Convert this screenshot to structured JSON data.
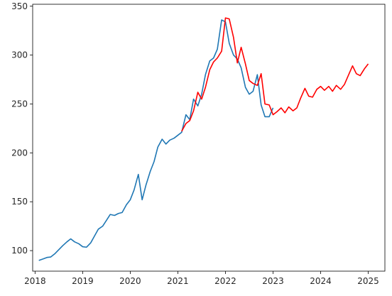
{
  "chart_data": {
    "type": "line",
    "title": "",
    "xlabel": "",
    "ylabel": "",
    "xlim": [
      2017.95,
      2025.35
    ],
    "ylim": [
      79,
      352
    ],
    "grid": false,
    "x_ticks": [
      2018,
      2019,
      2020,
      2021,
      2022,
      2023,
      2024,
      2025
    ],
    "x_tick_labels": [
      "2018",
      "2019",
      "2020",
      "2021",
      "2022",
      "2023",
      "2024",
      "2025"
    ],
    "y_ticks": [
      100,
      150,
      200,
      250,
      300,
      350
    ],
    "y_tick_labels": [
      "100",
      "150",
      "200",
      "250",
      "300",
      "350"
    ],
    "series": [
      {
        "color": "#1f77b4",
        "x": [
          2018.08,
          2018.17,
          2018.25,
          2018.33,
          2018.42,
          2018.5,
          2018.58,
          2018.67,
          2018.75,
          2018.83,
          2018.92,
          2019.0,
          2019.08,
          2019.17,
          2019.25,
          2019.33,
          2019.42,
          2019.5,
          2019.58,
          2019.67,
          2019.75,
          2019.83,
          2019.92,
          2020.0,
          2020.08,
          2020.17,
          2020.25,
          2020.33,
          2020.42,
          2020.5,
          2020.58,
          2020.67,
          2020.75,
          2020.83,
          2020.92,
          2021.0,
          2021.08,
          2021.17,
          2021.25,
          2021.33,
          2021.42,
          2021.5,
          2021.58,
          2021.67,
          2021.75,
          2021.83,
          2021.92,
          2022.0,
          2022.08,
          2022.17,
          2022.25,
          2022.33,
          2022.42,
          2022.5,
          2022.58,
          2022.67,
          2022.75,
          2022.83,
          2022.92,
          2023.0
        ],
        "y": [
          90,
          91.5,
          93,
          93.5,
          97,
          101,
          105,
          109,
          112,
          109,
          107,
          104,
          103.5,
          108,
          115,
          122,
          125,
          131,
          137,
          136,
          138,
          139,
          147,
          152,
          162,
          178,
          152,
          167,
          181,
          191,
          206,
          214,
          209,
          213,
          215,
          218,
          221,
          239,
          234,
          255,
          248,
          260,
          280,
          294,
          297,
          306,
          336,
          334,
          312,
          300,
          296,
          287,
          267,
          260,
          263,
          280,
          249,
          237,
          237,
          246
        ]
      },
      {
        "color": "#ff0000",
        "x": [
          2021.08,
          2021.17,
          2021.25,
          2021.33,
          2021.42,
          2021.5,
          2021.58,
          2021.67,
          2021.75,
          2021.83,
          2021.92,
          2022.0,
          2022.08,
          2022.17,
          2022.25,
          2022.33,
          2022.42,
          2022.5,
          2022.58,
          2022.67,
          2022.75,
          2022.83,
          2022.92,
          2023.0,
          2023.08,
          2023.17,
          2023.25,
          2023.33,
          2023.42,
          2023.5,
          2023.58,
          2023.67,
          2023.75,
          2023.83,
          2023.92,
          2024.0,
          2024.08,
          2024.17,
          2024.25,
          2024.33,
          2024.42,
          2024.5,
          2024.58,
          2024.67,
          2024.75,
          2024.83,
          2024.92,
          2025.0
        ],
        "y": [
          222,
          230,
          233,
          243,
          262,
          255,
          267,
          285,
          293,
          297,
          304,
          338,
          337,
          318,
          292,
          308,
          291,
          274,
          271,
          269,
          281,
          250,
          249,
          239,
          242,
          246,
          241,
          247,
          243,
          246,
          256,
          266,
          258,
          257,
          265,
          268,
          264,
          268,
          263,
          269,
          265,
          270,
          279,
          289,
          281,
          279,
          286,
          291
        ]
      }
    ]
  }
}
